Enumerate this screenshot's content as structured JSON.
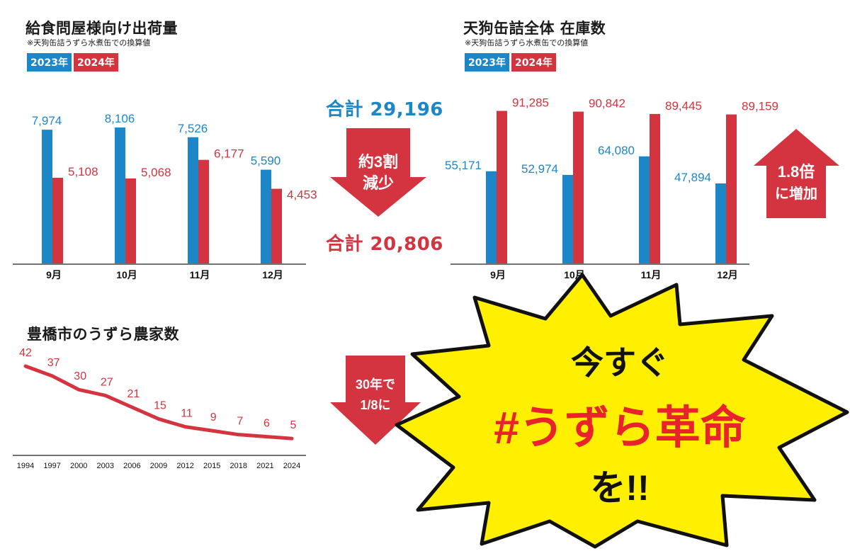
{
  "colors": {
    "y2023": "#1c86c6",
    "y2024": "#d3343f",
    "burst": "#ffef00",
    "line": "#d3343f"
  },
  "charts": {
    "shipments": {
      "title": "給食問屋様向け出荷量",
      "note": "※天狗缶詰うずら水煮缶での換算値",
      "legend": [
        "2023年",
        "2024年"
      ]
    },
    "inventory": {
      "title": "天狗缶詰全体 在庫数",
      "note": "※天狗缶詰うずら水煮缶での換算値",
      "legend": [
        "2023年",
        "2024年"
      ]
    },
    "farms": {
      "title": "豊橋市のうずら農家数"
    }
  },
  "summary": {
    "total_2023": "合計 29,196",
    "total_2024": "合計 20,806",
    "down_arrow": [
      "約3割",
      "減少"
    ],
    "up_arrow": [
      "1.8倍",
      "に増加"
    ],
    "farms_arrow": [
      "30年で",
      "1/8に"
    ]
  },
  "callout": {
    "line1": "今すぐ",
    "line2": "#うずら革命",
    "line3": "を!!"
  },
  "chart_data": [
    {
      "type": "bar",
      "title": "給食問屋様向け出荷量",
      "categories": [
        "9月",
        "10月",
        "11月",
        "12月"
      ],
      "series": [
        {
          "name": "2023年",
          "values": [
            7974,
            8106,
            7526,
            5590
          ],
          "labels": [
            "7,974",
            "8,106",
            "7,526",
            "5,590"
          ]
        },
        {
          "name": "2024年",
          "values": [
            5108,
            5068,
            6177,
            4453
          ],
          "labels": [
            "5,108",
            "5,068",
            "6,177",
            "4,453"
          ]
        }
      ],
      "ylim": [
        0,
        9500
      ]
    },
    {
      "type": "bar",
      "title": "天狗缶詰全体 在庫数",
      "categories": [
        "9月",
        "10月",
        "11月",
        "12月"
      ],
      "series": [
        {
          "name": "2023年",
          "values": [
            55171,
            52974,
            64080,
            47894
          ],
          "labels": [
            "55,171",
            "52,974",
            "64,080",
            "47,894"
          ]
        },
        {
          "name": "2024年",
          "values": [
            91285,
            90842,
            89445,
            89159
          ],
          "labels": [
            "91,285",
            "90,842",
            "89,445",
            "89,159"
          ]
        }
      ],
      "ylim": [
        0,
        100000
      ]
    },
    {
      "type": "line",
      "title": "豊橋市のうずら農家数",
      "x": [
        "1994",
        "1997",
        "2000",
        "2003",
        "2006",
        "2009",
        "2012",
        "2015",
        "2018",
        "2021",
        "2024"
      ],
      "values": [
        42,
        37,
        30,
        27,
        21,
        15,
        11,
        9,
        7,
        6,
        5
      ],
      "ylim": [
        0,
        45
      ]
    }
  ]
}
